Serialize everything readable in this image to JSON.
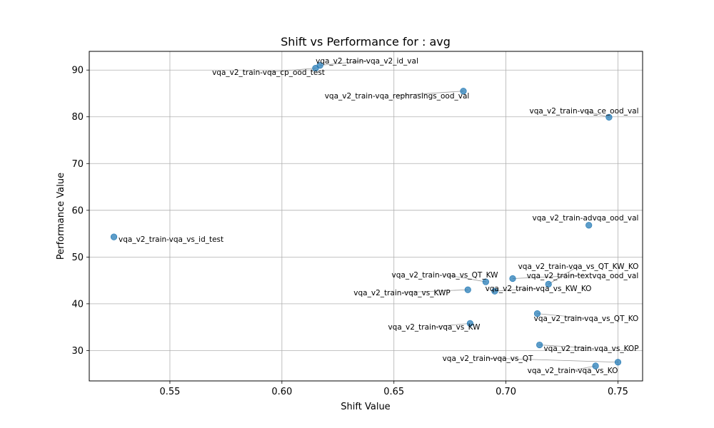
{
  "chart_data": {
    "type": "scatter",
    "title": "Shift vs Performance for : avg",
    "xlabel": "Shift Value",
    "ylabel": "Performance Value",
    "xlim": [
      0.514,
      0.761
    ],
    "ylim": [
      23.5,
      94.0
    ],
    "xticks": [
      "0.55",
      "0.60",
      "0.65",
      "0.70",
      "0.75"
    ],
    "xtick_values": [
      0.55,
      0.6,
      0.65,
      0.7,
      0.75
    ],
    "yticks": [
      "30",
      "40",
      "50",
      "60",
      "70",
      "80",
      "90"
    ],
    "ytick_values": [
      30,
      40,
      50,
      60,
      70,
      80,
      90
    ],
    "grid": true,
    "marker_color": "#1f77b4",
    "points": [
      {
        "x": 0.617,
        "y": 91.0,
        "label": "vqa_v2_train-vqa_v2_id_val"
      },
      {
        "x": 0.615,
        "y": 90.4,
        "label": "vqa_v2_train-vqa_cp_ood_test"
      },
      {
        "x": 0.681,
        "y": 85.5,
        "label": "vqa_v2_train-vqa_rephrasings_ood_val"
      },
      {
        "x": 0.746,
        "y": 79.9,
        "label": "vqa_v2_train-vqa_ce_ood_val"
      },
      {
        "x": 0.737,
        "y": 56.8,
        "label": "vqa_v2_train-advqa_ood_val"
      },
      {
        "x": 0.525,
        "y": 54.3,
        "label": "vqa_v2_train-vqa_vs_id_test"
      },
      {
        "x": 0.719,
        "y": 44.2,
        "label": "vqa_v2_train-vqa_vs_QT_KW_KO"
      },
      {
        "x": 0.703,
        "y": 45.4,
        "label": "vqa_v2_train-textvqa_ood_val"
      },
      {
        "x": 0.691,
        "y": 44.7,
        "label": "vqa_v2_train-vqa_vs_QT_KW"
      },
      {
        "x": 0.683,
        "y": 43.0,
        "label": "vqa_v2_train-vqa_vs_KWP"
      },
      {
        "x": 0.695,
        "y": 42.7,
        "label": "vqa_v2_train-vqa_vs_KW_KO"
      },
      {
        "x": 0.714,
        "y": 37.9,
        "label": "vqa_v2_train-vqa_vs_QT_KO"
      },
      {
        "x": 0.684,
        "y": 35.8,
        "label": "vqa_v2_train-vqa_vs_KW"
      },
      {
        "x": 0.715,
        "y": 31.2,
        "label": "vqa_v2_train-vqa_vs_KOP"
      },
      {
        "x": 0.75,
        "y": 27.5,
        "label": "vqa_v2_train-vqa_vs_QT"
      },
      {
        "x": 0.74,
        "y": 26.7,
        "label": "vqa_v2_train-vqa_vs_KO"
      }
    ]
  }
}
